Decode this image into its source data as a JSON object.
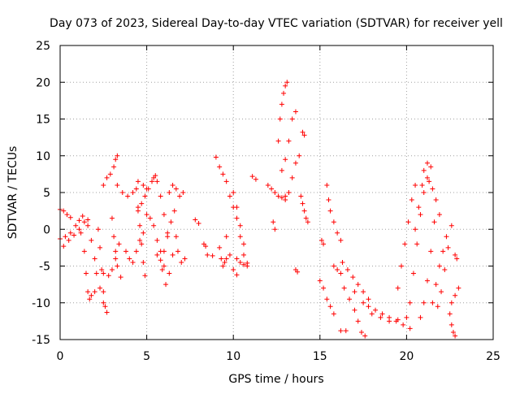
{
  "chart_data": {
    "type": "scatter",
    "title": "Day 073 of 2023, Sidereal Day-to-day VTEC variation (SDTVAR) for receiver yell",
    "xlabel": "GPS time / hours",
    "ylabel": "SDTVAR / TECUs",
    "xlim": [
      0,
      25
    ],
    "ylim": [
      -15,
      25
    ],
    "xticks": [
      0,
      5,
      10,
      15,
      20,
      25
    ],
    "yticks": [
      -15,
      -10,
      -5,
      0,
      5,
      10,
      15,
      20,
      25
    ],
    "xtick_labels": [
      "0",
      "5",
      "10",
      "15",
      "20",
      "25"
    ],
    "ytick_labels": [
      "-15",
      "-10",
      "-5",
      "0",
      "5",
      "10",
      "15",
      "20",
      "25"
    ],
    "grid": true,
    "marker": "plus",
    "color": "#ff0000",
    "series": [
      {
        "name": "s1",
        "x": [
          0.0,
          0.2,
          0.4,
          0.6
        ],
        "y": [
          2.7,
          2.5,
          2.0,
          1.6
        ]
      },
      {
        "name": "s2",
        "x": [
          0.0,
          0.3,
          0.6,
          0.9,
          1.1,
          1.3
        ],
        "y": [
          -1.3,
          -1.0,
          -0.5,
          0.5,
          1.2,
          1.8
        ]
      },
      {
        "name": "s3",
        "x": [
          0.2,
          0.5,
          0.8,
          1.1,
          1.4,
          1.6
        ],
        "y": [
          -2.3,
          -1.5,
          -0.8,
          0.0,
          1.0,
          1.3
        ]
      },
      {
        "name": "s4",
        "x": [
          1.2,
          1.4,
          1.5,
          1.6,
          1.7,
          1.8,
          2.0
        ],
        "y": [
          -0.5,
          -3.0,
          -6.0,
          -8.5,
          -9.5,
          -9.0,
          -8.5
        ]
      },
      {
        "name": "s5",
        "x": [
          1.6,
          1.8,
          2.0,
          2.1,
          2.3,
          2.5
        ],
        "y": [
          0.5,
          -1.5,
          -4.0,
          -6.0,
          -8.0,
          -10.0
        ]
      },
      {
        "name": "s6",
        "x": [
          2.2,
          2.3,
          2.4,
          2.5,
          2.6,
          2.7
        ],
        "y": [
          0.0,
          -2.5,
          -5.5,
          -8.5,
          -10.5,
          -11.3
        ]
      },
      {
        "name": "s7",
        "x": [
          2.5,
          2.8,
          3.0,
          3.2,
          3.4
        ],
        "y": [
          -6.0,
          -6.3,
          -5.5,
          -4.0,
          -2.0
        ]
      },
      {
        "name": "s8",
        "x": [
          2.5,
          2.7,
          2.9,
          3.1,
          3.2,
          3.3
        ],
        "y": [
          6.0,
          7.0,
          7.5,
          8.5,
          9.5,
          10.0
        ]
      },
      {
        "name": "s9",
        "x": [
          3.0,
          3.1,
          3.2,
          3.3,
          3.5
        ],
        "y": [
          1.5,
          -1.0,
          -3.0,
          -5.0,
          -6.5
        ]
      },
      {
        "name": "s10",
        "x": [
          3.3,
          3.6,
          3.9,
          4.2,
          4.5,
          4.8,
          5.0
        ],
        "y": [
          6.0,
          5.0,
          4.5,
          5.0,
          6.5,
          6.0,
          5.5
        ]
      },
      {
        "name": "s11",
        "x": [
          3.8,
          4.0,
          4.2,
          4.4,
          4.6,
          4.8
        ],
        "y": [
          -3.0,
          -4.0,
          -4.5,
          -3.0,
          -1.5,
          -0.5
        ]
      },
      {
        "name": "s12",
        "x": [
          4.4,
          4.5,
          4.6,
          4.7,
          4.8,
          4.9
        ],
        "y": [
          5.5,
          3.0,
          0.5,
          -2.0,
          -4.5,
          -6.3
        ]
      },
      {
        "name": "s13",
        "x": [
          4.5,
          4.7,
          4.9,
          5.1,
          5.3,
          5.5
        ],
        "y": [
          2.5,
          3.5,
          4.5,
          5.5,
          6.5,
          7.3
        ]
      },
      {
        "name": "s14",
        "x": [
          5.0,
          5.2,
          5.4,
          5.6,
          5.8,
          6.0
        ],
        "y": [
          2.0,
          1.5,
          0.5,
          -1.5,
          -3.0,
          -5.0
        ]
      },
      {
        "name": "s15",
        "x": [
          5.4,
          5.6,
          5.8,
          6.0,
          6.2
        ],
        "y": [
          7.0,
          6.5,
          4.5,
          2.0,
          -0.5
        ]
      },
      {
        "name": "s16",
        "x": [
          5.6,
          5.8,
          6.0,
          6.2,
          6.4,
          6.6
        ],
        "y": [
          -3.5,
          -4.2,
          -3.0,
          -1.0,
          1.0,
          2.5
        ]
      },
      {
        "name": "s17",
        "x": [
          5.9,
          6.1,
          6.3,
          6.5,
          6.7
        ],
        "y": [
          -5.5,
          -7.5,
          -6.0,
          -3.5,
          -1.0
        ]
      },
      {
        "name": "s18",
        "x": [
          6.3,
          6.5,
          6.7,
          6.9,
          7.1
        ],
        "y": [
          5.0,
          6.0,
          5.5,
          4.5,
          5.0
        ]
      },
      {
        "name": "s19",
        "x": [
          6.8,
          7.0,
          7.2
        ],
        "y": [
          -3.0,
          -4.5,
          -4.0
        ]
      },
      {
        "name": "s20",
        "x": [
          7.8,
          8.0,
          8.3,
          8.4
        ],
        "y": [
          1.3,
          0.8,
          -2.0,
          -2.3
        ]
      },
      {
        "name": "s21",
        "x": [
          8.5,
          8.8
        ],
        "y": [
          -3.5,
          -3.6
        ]
      },
      {
        "name": "s22",
        "x": [
          9.0,
          9.2,
          9.4,
          9.6
        ],
        "y": [
          9.8,
          8.5,
          7.5,
          6.5
        ]
      },
      {
        "name": "s23",
        "x": [
          9.2,
          9.3,
          9.4,
          9.5,
          9.6
        ],
        "y": [
          -2.5,
          -4.0,
          -5.0,
          -4.5,
          -4.0
        ]
      },
      {
        "name": "s24",
        "x": [
          9.6,
          9.8,
          10.0,
          10.2
        ],
        "y": [
          -1.0,
          -3.5,
          -5.5,
          -6.2
        ]
      },
      {
        "name": "s25",
        "x": [
          9.8,
          10.0,
          10.2,
          10.4,
          10.6,
          10.8
        ],
        "y": [
          4.5,
          3.0,
          1.5,
          -1.0,
          -3.5,
          -5.0
        ]
      },
      {
        "name": "s26",
        "x": [
          10.0,
          10.2,
          10.4,
          10.6
        ],
        "y": [
          5.0,
          3.0,
          0.5,
          -2.0
        ]
      },
      {
        "name": "s27",
        "x": [
          10.2,
          10.4,
          10.6,
          10.8
        ],
        "y": [
          -4.0,
          -4.5,
          -4.8,
          -4.6
        ]
      },
      {
        "name": "s28",
        "x": [
          11.1,
          11.3
        ],
        "y": [
          7.2,
          6.8
        ]
      },
      {
        "name": "s29",
        "x": [
          12.0,
          12.2,
          12.4,
          12.6,
          12.8,
          13.0
        ],
        "y": [
          6.0,
          5.5,
          5.0,
          4.5,
          4.3,
          4.5
        ]
      },
      {
        "name": "s30",
        "x": [
          12.3,
          12.4
        ],
        "y": [
          1.0,
          0.0
        ]
      },
      {
        "name": "s31",
        "x": [
          12.6,
          12.7,
          12.8,
          12.9,
          13.0,
          13.1
        ],
        "y": [
          12.0,
          15.0,
          17.0,
          18.5,
          19.5,
          20.0
        ]
      },
      {
        "name": "s32",
        "x": [
          12.8,
          13.0,
          13.2,
          13.4,
          13.6
        ],
        "y": [
          8.0,
          9.5,
          12.0,
          15.0,
          16.0
        ]
      },
      {
        "name": "s33",
        "x": [
          13.0,
          13.2,
          13.4,
          13.6,
          13.8
        ],
        "y": [
          4.0,
          5.0,
          7.0,
          9.0,
          10.0
        ]
      },
      {
        "name": "s34",
        "x": [
          13.6,
          13.7
        ],
        "y": [
          -5.5,
          -5.8
        ]
      },
      {
        "name": "s35",
        "x": [
          14.0,
          14.1
        ],
        "y": [
          13.2,
          12.8
        ]
      },
      {
        "name": "s36",
        "x": [
          13.9,
          14.0,
          14.1,
          14.2,
          14.3
        ],
        "y": [
          4.5,
          3.5,
          2.5,
          1.5,
          1.0
        ]
      },
      {
        "name": "s37",
        "x": [
          15.0,
          15.2,
          15.4,
          15.6,
          15.8
        ],
        "y": [
          -7.0,
          -8.0,
          -9.5,
          -10.5,
          -11.5
        ]
      },
      {
        "name": "s38",
        "x": [
          15.1,
          15.2
        ],
        "y": [
          -1.5,
          -2.0
        ]
      },
      {
        "name": "s39",
        "x": [
          15.4,
          15.5,
          15.6,
          15.8,
          16.0,
          16.2
        ],
        "y": [
          6.0,
          4.0,
          2.5,
          1.0,
          -0.5,
          -1.5
        ]
      },
      {
        "name": "s40",
        "x": [
          15.8,
          16.0,
          16.2
        ],
        "y": [
          -5.0,
          -5.5,
          -6.0
        ]
      },
      {
        "name": "s41",
        "x": [
          16.2,
          16.5
        ],
        "y": [
          -13.8,
          -13.8
        ]
      },
      {
        "name": "s42",
        "x": [
          16.3,
          16.6,
          16.9,
          17.2,
          17.5,
          17.8
        ],
        "y": [
          -4.5,
          -5.5,
          -6.5,
          -7.5,
          -8.5,
          -9.5
        ]
      },
      {
        "name": "s43",
        "x": [
          16.4,
          16.7,
          17.0,
          17.2,
          17.4,
          17.6
        ],
        "y": [
          -8.0,
          -9.5,
          -11.0,
          -12.5,
          -14.0,
          -14.5
        ]
      },
      {
        "name": "s44",
        "x": [
          17.0,
          17.5,
          18.0,
          18.5,
          19.0,
          19.5
        ],
        "y": [
          -8.5,
          -10.0,
          -11.5,
          -12.0,
          -12.5,
          -12.3
        ]
      },
      {
        "name": "s45",
        "x": [
          17.8,
          18.2,
          18.6,
          19.0,
          19.4,
          19.8,
          20.2
        ],
        "y": [
          -10.5,
          -11.0,
          -11.5,
          -12.0,
          -12.5,
          -13.0,
          -13.5
        ]
      },
      {
        "name": "s46",
        "x": [
          19.5,
          19.7,
          19.9,
          20.1,
          20.3,
          20.5
        ],
        "y": [
          -8.0,
          -5.0,
          -2.0,
          1.0,
          4.0,
          6.0
        ]
      },
      {
        "name": "s47",
        "x": [
          20.0,
          20.2,
          20.4,
          20.6,
          20.8,
          21.0,
          21.2
        ],
        "y": [
          -12.0,
          -10.0,
          -6.0,
          -2.0,
          2.0,
          5.0,
          7.0
        ]
      },
      {
        "name": "s48",
        "x": [
          20.5,
          20.7,
          20.9,
          21.0,
          21.2,
          21.4
        ],
        "y": [
          0.0,
          3.0,
          6.0,
          8.0,
          9.0,
          8.5
        ]
      },
      {
        "name": "s49",
        "x": [
          20.8,
          21.0,
          21.2,
          21.4,
          21.6
        ],
        "y": [
          -12.0,
          -10.0,
          -7.0,
          -3.0,
          1.0
        ]
      },
      {
        "name": "s50",
        "x": [
          21.3,
          21.5,
          21.7,
          21.9
        ],
        "y": [
          6.5,
          5.5,
          4.0,
          2.0
        ]
      },
      {
        "name": "s51",
        "x": [
          21.5,
          21.7,
          21.9,
          22.1,
          22.3
        ],
        "y": [
          -10.0,
          -7.5,
          -5.0,
          -3.0,
          -1.0
        ]
      },
      {
        "name": "s52",
        "x": [
          21.8,
          22.0,
          22.2,
          22.4,
          22.6
        ],
        "y": [
          -10.5,
          -8.5,
          -5.5,
          -2.5,
          0.5
        ]
      },
      {
        "name": "s53",
        "x": [
          22.5,
          22.6,
          22.7,
          22.8
        ],
        "y": [
          -11.5,
          -13.0,
          -14.0,
          -14.5
        ]
      },
      {
        "name": "s54",
        "x": [
          22.6,
          22.8,
          23.0
        ],
        "y": [
          -10.0,
          -9.0,
          -8.0
        ]
      },
      {
        "name": "s55",
        "x": [
          22.8,
          22.9
        ],
        "y": [
          -3.5,
          -4.0
        ]
      }
    ]
  }
}
